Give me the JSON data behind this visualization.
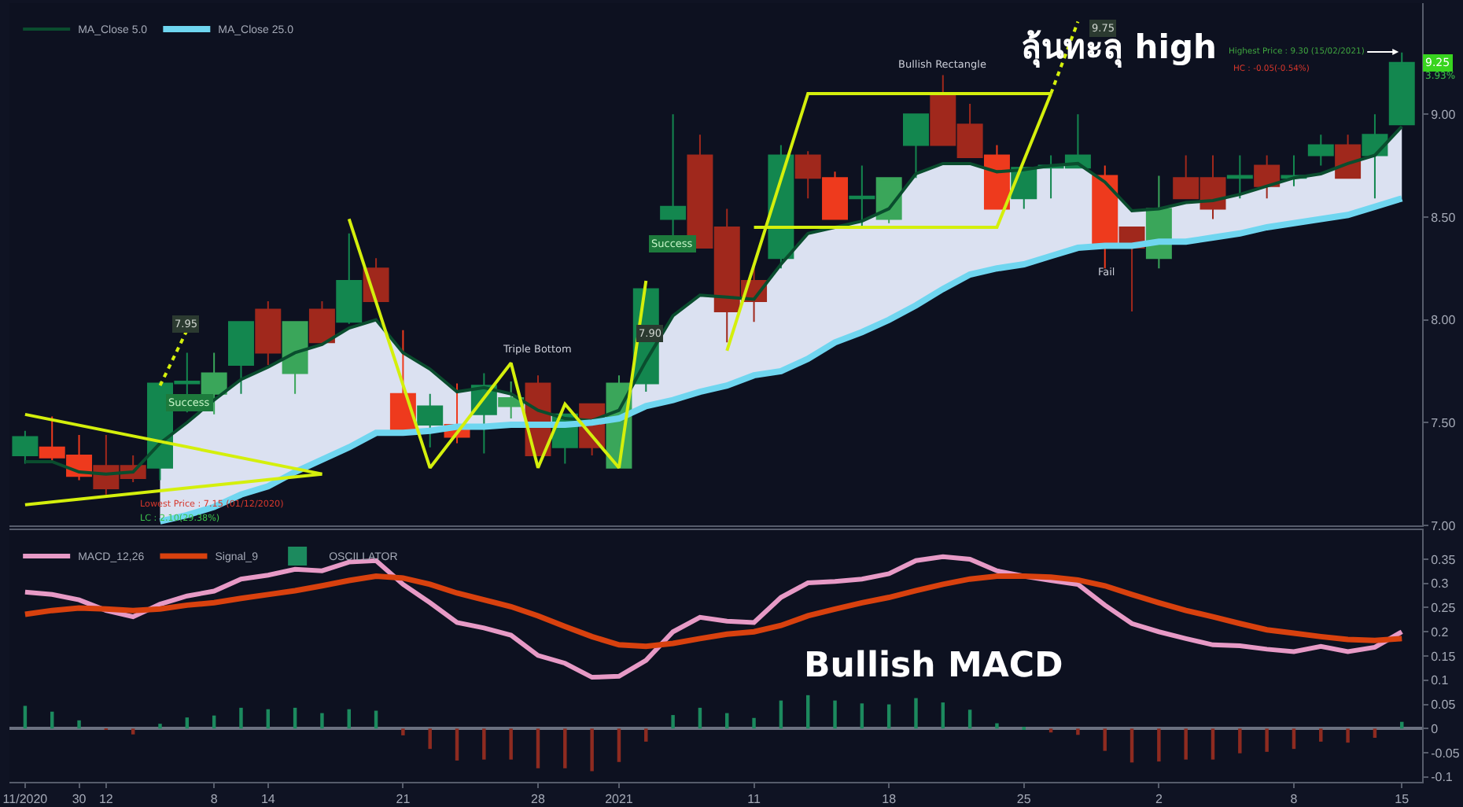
{
  "chart_data": [
    {
      "type": "candlestick",
      "categories": [
        null,
        null,
        null,
        null,
        null,
        null,
        null,
        null,
        null,
        null,
        null,
        null,
        null,
        null,
        null,
        null,
        null,
        null,
        null,
        null,
        null,
        null,
        null,
        null,
        null,
        null,
        null,
        null,
        null,
        null,
        null,
        null,
        null,
        null,
        null,
        null,
        null,
        null,
        null,
        null,
        null,
        null,
        null,
        null,
        null,
        null,
        null,
        null,
        null,
        null,
        null,
        null
      ],
      "ohlc": [
        [
          7.34,
          7.46,
          7.3,
          7.43
        ],
        [
          7.38,
          7.53,
          7.31,
          7.33
        ],
        [
          7.34,
          7.44,
          7.22,
          7.24
        ],
        [
          7.29,
          7.44,
          7.15,
          7.18
        ],
        [
          7.29,
          7.34,
          7.21,
          7.23
        ],
        [
          7.28,
          7.7,
          7.22,
          7.69
        ],
        [
          7.69,
          7.84,
          7.55,
          7.7
        ],
        [
          7.64,
          7.84,
          7.54,
          7.74
        ],
        [
          7.78,
          7.99,
          7.64,
          7.99
        ],
        [
          8.05,
          8.09,
          7.78,
          7.84
        ],
        [
          7.74,
          7.99,
          7.64,
          7.99
        ],
        [
          8.05,
          8.09,
          7.89,
          7.89
        ],
        [
          7.99,
          8.42,
          7.98,
          8.19
        ],
        [
          8.25,
          8.3,
          8.09,
          8.09
        ],
        [
          7.64,
          7.95,
          7.46,
          7.46
        ],
        [
          7.49,
          7.64,
          7.38,
          7.58
        ],
        [
          7.49,
          7.69,
          7.4,
          7.43
        ],
        [
          7.54,
          7.74,
          7.35,
          7.68
        ],
        [
          7.58,
          7.7,
          7.52,
          7.62
        ],
        [
          7.69,
          7.73,
          7.34,
          7.34
        ],
        [
          7.38,
          7.54,
          7.3,
          7.54
        ],
        [
          7.59,
          7.59,
          7.34,
          7.38
        ],
        [
          7.28,
          7.73,
          7.28,
          7.69
        ],
        [
          7.69,
          8.15,
          7.65,
          8.15
        ],
        [
          8.49,
          9.0,
          8.4,
          8.55
        ],
        [
          8.8,
          8.9,
          8.35,
          8.35
        ],
        [
          8.45,
          8.54,
          7.89,
          8.04
        ],
        [
          8.19,
          8.26,
          7.99,
          8.09
        ],
        [
          8.3,
          8.85,
          8.25,
          8.8
        ],
        [
          8.8,
          8.82,
          8.59,
          8.69
        ],
        [
          8.69,
          8.72,
          8.49,
          8.49
        ],
        [
          8.59,
          8.75,
          8.45,
          8.6
        ],
        [
          8.49,
          8.69,
          8.47,
          8.69
        ],
        [
          8.85,
          9.0,
          8.69,
          9.0
        ],
        [
          9.09,
          9.19,
          8.85,
          8.85
        ],
        [
          8.95,
          9.05,
          8.79,
          8.79
        ],
        [
          8.8,
          8.85,
          8.54,
          8.54
        ],
        [
          8.59,
          8.74,
          8.54,
          8.74
        ],
        [
          8.74,
          8.8,
          8.59,
          8.75
        ],
        [
          8.74,
          9.0,
          8.74,
          8.8
        ],
        [
          8.7,
          8.75,
          8.25,
          8.36
        ],
        [
          8.45,
          8.45,
          8.04,
          8.35
        ],
        [
          8.3,
          8.7,
          8.25,
          8.54
        ],
        [
          8.69,
          8.8,
          8.59,
          8.59
        ],
        [
          8.69,
          8.8,
          8.49,
          8.54
        ],
        [
          8.69,
          8.8,
          8.59,
          8.7
        ],
        [
          8.75,
          8.8,
          8.59,
          8.65
        ],
        [
          8.69,
          8.8,
          8.65,
          8.7
        ],
        [
          8.8,
          8.9,
          8.75,
          8.85
        ],
        [
          8.85,
          8.9,
          8.69,
          8.69
        ],
        [
          8.8,
          9.0,
          8.59,
          8.9
        ],
        [
          8.95,
          9.3,
          8.95,
          9.25
        ]
      ],
      "colors": [
        "#13874f",
        "#ee3a1d",
        "#ee3a1d",
        "#a0281c",
        "#a0281c",
        "#13874f",
        "#13874f",
        "#3aa65a",
        "#13874f",
        "#a0281c",
        "#3aa65a",
        "#a0281c",
        "#13874f",
        "#a0281c",
        "#ee3a1d",
        "#13874f",
        "#ee3a1d",
        "#13874f",
        "#3aa65a",
        "#a0281c",
        "#13874f",
        "#a0281c",
        "#3aa65a",
        "#13874f",
        "#13874f",
        "#a0281c",
        "#a0281c",
        "#a0281c",
        "#13874f",
        "#a0281c",
        "#ee3a1d",
        "#13874f",
        "#3aa65a",
        "#13874f",
        "#a0281c",
        "#a0281c",
        "#ee3a1d",
        "#13874f",
        "#13874f",
        "#13874f",
        "#ee3a1d",
        "#a0281c",
        "#3aa65a",
        "#a0281c",
        "#a0281c",
        "#13874f",
        "#a0281c",
        "#13874f",
        "#13874f",
        "#a0281c",
        "#13874f",
        "#13874f"
      ],
      "series": [
        {
          "name": "MA_Close 5.0",
          "type": "line",
          "color": "#0a4d2e",
          "values": [
            7.31,
            7.31,
            7.26,
            7.25,
            7.26,
            7.4,
            7.5,
            7.61,
            7.71,
            7.77,
            7.84,
            7.88,
            7.96,
            8.0,
            7.84,
            7.76,
            7.65,
            7.67,
            7.64,
            7.56,
            7.52,
            7.51,
            7.56,
            7.8,
            8.02,
            8.12,
            8.11,
            8.1,
            8.27,
            8.42,
            8.45,
            8.48,
            8.54,
            8.71,
            8.76,
            8.76,
            8.72,
            8.73,
            8.75,
            8.76,
            8.67,
            8.53,
            8.54,
            8.57,
            8.58,
            8.61,
            8.65,
            8.69,
            8.71,
            8.76,
            8.8,
            8.94
          ],
          "lower": [
            null,
            null,
            null,
            null,
            null,
            7.02,
            7.05,
            7.09,
            7.15,
            7.19,
            7.26,
            7.32,
            7.38,
            7.45,
            7.45,
            7.46,
            7.48,
            7.48,
            7.49,
            7.49,
            7.49,
            7.5,
            7.52,
            7.58,
            7.61,
            7.65,
            7.68,
            7.73,
            7.75,
            7.81,
            7.89,
            7.94,
            8.0,
            8.07,
            8.15,
            8.22,
            8.25,
            8.27,
            8.31,
            8.35,
            8.36,
            8.36,
            8.38,
            8.38,
            8.4,
            8.42,
            8.45,
            8.47,
            8.49,
            8.51,
            8.55,
            8.59
          ],
          "upper": [
            null,
            null,
            null,
            null,
            null,
            7.4,
            7.5,
            7.61,
            7.71,
            7.77,
            7.84,
            7.88,
            7.96,
            8.0,
            7.84,
            7.76,
            7.65,
            7.67,
            7.64,
            7.56,
            7.52,
            7.51,
            7.56,
            7.8,
            8.02,
            8.12,
            8.11,
            8.1,
            8.27,
            8.42,
            8.45,
            8.48,
            8.54,
            8.71,
            8.76,
            8.76,
            8.72,
            8.73,
            8.75,
            8.76,
            8.67,
            8.53,
            8.54,
            8.57,
            8.58,
            8.61,
            8.65,
            8.69,
            8.71,
            8.76,
            8.8,
            8.94
          ]
        },
        {
          "name": "MA_Close 25.0",
          "type": "line",
          "color": "#6fd6f0",
          "values": [
            null,
            null,
            null,
            null,
            null,
            7.02,
            7.05,
            7.09,
            7.15,
            7.19,
            7.26,
            7.32,
            7.38,
            7.45,
            7.45,
            7.46,
            7.48,
            7.48,
            7.49,
            7.49,
            7.49,
            7.5,
            7.52,
            7.58,
            7.61,
            7.65,
            7.68,
            7.73,
            7.75,
            7.81,
            7.89,
            7.94,
            8.0,
            8.07,
            8.15,
            8.22,
            8.25,
            8.27,
            8.31,
            8.35,
            8.36,
            8.36,
            8.38,
            8.38,
            8.4,
            8.42,
            8.45,
            8.47,
            8.49,
            8.51,
            8.55,
            8.59
          ]
        },
        {
          "type": "line",
          "color": "#d4ef0c",
          "values": [
            7.54,
            null,
            null,
            null,
            null,
            null,
            null,
            null,
            null,
            null,
            null,
            7.25,
            null,
            null,
            null,
            null,
            null,
            null,
            null,
            null,
            null,
            null,
            null,
            null,
            null,
            null,
            null,
            null,
            null,
            null,
            null,
            null,
            null,
            null,
            null,
            null,
            null,
            null,
            null,
            null,
            null,
            null,
            null,
            null,
            null,
            null,
            null,
            null,
            null,
            null,
            null,
            null
          ]
        },
        {
          "type": "line",
          "color": "#d4ef0c",
          "values": [
            7.1,
            null,
            null,
            null,
            null,
            null,
            null,
            null,
            null,
            null,
            null,
            7.25,
            null,
            null,
            null,
            null,
            null,
            null,
            null,
            null,
            null,
            null,
            null,
            null,
            null,
            null,
            null,
            null,
            null,
            null,
            null,
            null,
            null,
            null,
            null,
            null,
            null,
            null,
            null,
            null,
            null,
            null,
            null,
            null,
            null,
            null,
            null,
            null,
            null,
            null,
            null,
            null
          ]
        },
        {
          "type": "line",
          "color": "#d4ef0c",
          "line_style": "dotted",
          "values": [
            null,
            null,
            null,
            null,
            null,
            7.68,
            7.95,
            null,
            null,
            null,
            null,
            null,
            null,
            null,
            null,
            null,
            null,
            null,
            null,
            null,
            null,
            null,
            null,
            null,
            null,
            null,
            null,
            null,
            null,
            null,
            null,
            null,
            null,
            null,
            null,
            null,
            null,
            null,
            null,
            null,
            null,
            null,
            null,
            null,
            null,
            null,
            null,
            null,
            null,
            null,
            null,
            null
          ]
        },
        {
          "type": "line",
          "color": "#d4ef0c",
          "values": [
            null,
            null,
            null,
            null,
            null,
            null,
            null,
            null,
            null,
            null,
            null,
            null,
            8.49,
            null,
            null,
            7.28,
            null,
            null,
            7.79,
            7.28,
            7.59,
            null,
            7.28,
            8.19,
            null,
            null,
            null,
            null,
            null,
            null,
            null,
            null,
            null,
            null,
            null,
            null,
            null,
            null,
            null,
            null,
            null,
            null,
            null,
            null,
            null,
            null,
            null,
            null,
            null,
            null,
            null,
            null
          ]
        },
        {
          "type": "line",
          "color": "#d4ef0c",
          "values": [
            null,
            null,
            null,
            null,
            null,
            null,
            null,
            null,
            null,
            null,
            null,
            null,
            null,
            null,
            null,
            null,
            null,
            null,
            null,
            null,
            null,
            null,
            null,
            null,
            null,
            null,
            7.85,
            null,
            null,
            9.1,
            null,
            null,
            null,
            null,
            null,
            null,
            null,
            null,
            9.1,
            null,
            null,
            null,
            null,
            null,
            null,
            null,
            null,
            null,
            null,
            null,
            null,
            null
          ]
        },
        {
          "type": "line",
          "color": "#d4ef0c",
          "values": [
            null,
            null,
            null,
            null,
            null,
            null,
            null,
            null,
            null,
            null,
            null,
            null,
            null,
            null,
            null,
            null,
            null,
            null,
            null,
            null,
            null,
            null,
            null,
            null,
            null,
            null,
            null,
            8.45,
            null,
            null,
            null,
            null,
            null,
            null,
            null,
            null,
            8.45,
            null,
            9.1,
            null,
            null,
            null,
            null,
            null,
            null,
            null,
            null,
            null,
            null,
            null,
            null,
            null
          ]
        },
        {
          "type": "line",
          "color": "#d4ef0c",
          "line_style": "dotted",
          "values": [
            null,
            null,
            null,
            null,
            null,
            null,
            null,
            null,
            null,
            null,
            null,
            null,
            null,
            null,
            null,
            null,
            null,
            null,
            null,
            null,
            null,
            null,
            null,
            null,
            null,
            null,
            null,
            null,
            null,
            null,
            null,
            null,
            null,
            null,
            null,
            null,
            null,
            null,
            9.1,
            9.45,
            null,
            null,
            null,
            null,
            null,
            null,
            null,
            null,
            null,
            null,
            null,
            null
          ]
        }
      ],
      "ylim": [
        7.0,
        9.54
      ],
      "yticks": [
        {
          "value": 7,
          "label": "7.00"
        },
        {
          "value": 7.5,
          "label": "7.50"
        },
        {
          "value": 8,
          "label": "8.00"
        },
        {
          "value": 8.5,
          "label": "8.50"
        },
        {
          "value": 9,
          "label": "9.00"
        }
      ],
      "legend": "top left",
      "annotations": [
        "ลุ้นทะลุ high",
        "Highest Price : 9.30 (15/02/2021)",
        "HC : -0.05(-0.54%)",
        {
          "text": "9.25",
          "y": 9.25
        },
        "3.93%",
        "Lowest Price : 7.15 (01/12/2020)",
        "LC : 2.10(29.38%)",
        "7.95",
        "Success",
        "Triple Bottom",
        "7.90",
        "Success",
        "Bullish Rectangle",
        "9.75",
        "Fail"
      ]
    },
    {
      "type": "line",
      "categories": [
        "11/2020",
        null,
        "30",
        "12",
        null,
        null,
        null,
        "8",
        null,
        "14",
        null,
        null,
        null,
        null,
        "21",
        null,
        null,
        null,
        null,
        "28",
        null,
        null,
        "2021",
        null,
        null,
        null,
        null,
        "11",
        null,
        null,
        null,
        null,
        "18",
        null,
        null,
        null,
        null,
        "25",
        null,
        null,
        null,
        null,
        "2",
        null,
        null,
        null,
        null,
        "8",
        null,
        null,
        null,
        "15"
      ],
      "series": [
        {
          "name": "MACD_12,26",
          "type": "line",
          "color": "#e79ac6",
          "values": [
            0.282,
            0.277,
            0.266,
            0.244,
            0.231,
            0.257,
            0.274,
            0.284,
            0.309,
            0.317,
            0.329,
            0.326,
            0.344,
            0.347,
            0.298,
            0.26,
            0.219,
            0.208,
            0.193,
            0.151,
            0.135,
            0.106,
            0.108,
            0.141,
            0.2,
            0.23,
            0.222,
            0.219,
            0.271,
            0.301,
            0.304,
            0.309,
            0.32,
            0.347,
            0.355,
            0.35,
            0.326,
            0.315,
            0.306,
            0.298,
            0.255,
            0.217,
            0.2,
            0.186,
            0.173,
            0.171,
            0.164,
            0.159,
            0.17,
            0.159,
            0.168,
            0.2
          ]
        },
        {
          "name": "Signal_9",
          "type": "line",
          "color": "#d8410e",
          "values": [
            0.236,
            0.244,
            0.249,
            0.247,
            0.244,
            0.247,
            0.255,
            0.26,
            0.269,
            0.277,
            0.285,
            0.295,
            0.306,
            0.315,
            0.311,
            0.298,
            0.28,
            0.266,
            0.252,
            0.233,
            0.211,
            0.19,
            0.173,
            0.17,
            0.176,
            0.186,
            0.195,
            0.2,
            0.213,
            0.233,
            0.247,
            0.26,
            0.271,
            0.285,
            0.298,
            0.309,
            0.315,
            0.315,
            0.313,
            0.307,
            0.295,
            0.277,
            0.26,
            0.244,
            0.231,
            0.217,
            0.204,
            0.197,
            0.19,
            0.184,
            0.182,
            0.186
          ]
        },
        {
          "name": "OSCILLATOR",
          "type": "bar",
          "values": [
            0.047,
            0.035,
            0.017,
            -0.002,
            -0.012,
            0.01,
            0.023,
            0.027,
            0.043,
            0.04,
            0.043,
            0.032,
            0.04,
            0.037,
            -0.014,
            -0.042,
            -0.066,
            -0.064,
            -0.064,
            -0.082,
            -0.082,
            -0.088,
            -0.069,
            -0.027,
            0.028,
            0.043,
            0.032,
            0.022,
            0.058,
            0.069,
            0.058,
            0.052,
            0.05,
            0.063,
            0.054,
            0.039,
            0.011,
            0.002,
            -0.008,
            -0.013,
            -0.046,
            -0.07,
            -0.068,
            -0.064,
            -0.064,
            -0.051,
            -0.048,
            -0.042,
            -0.027,
            -0.029,
            -0.019,
            0.014
          ],
          "colors": [
            "#1c8a5e",
            "#1c8a5e",
            "#1c8a5e",
            "#8e2b20",
            "#8e2b20",
            "#1c8a5e",
            "#1c8a5e",
            "#1c8a5e",
            "#1c8a5e",
            "#1c8a5e",
            "#1c8a5e",
            "#1c8a5e",
            "#1c8a5e",
            "#1c8a5e",
            "#8e2b20",
            "#8e2b20",
            "#8e2b20",
            "#8e2b20",
            "#8e2b20",
            "#8e2b20",
            "#8e2b20",
            "#8e2b20",
            "#8e2b20",
            "#8e2b20",
            "#1c8a5e",
            "#1c8a5e",
            "#1c8a5e",
            "#1c8a5e",
            "#1c8a5e",
            "#1c8a5e",
            "#1c8a5e",
            "#1c8a5e",
            "#1c8a5e",
            "#1c8a5e",
            "#1c8a5e",
            "#1c8a5e",
            "#1c8a5e",
            "#1c8a5e",
            "#8e2b20",
            "#8e2b20",
            "#8e2b20",
            "#8e2b20",
            "#8e2b20",
            "#8e2b20",
            "#8e2b20",
            "#8e2b20",
            "#8e2b20",
            "#8e2b20",
            "#8e2b20",
            "#8e2b20",
            "#8e2b20",
            "#1c8a5e"
          ]
        }
      ],
      "ylim": [
        -0.11,
        0.41
      ],
      "yticks": [
        -0.1,
        -0.05,
        0,
        0.05,
        0.1,
        0.15,
        0.2,
        0.25,
        0.3,
        0.35
      ],
      "legend": "top left",
      "annotations": [
        "Bullish MACD"
      ]
    }
  ]
}
